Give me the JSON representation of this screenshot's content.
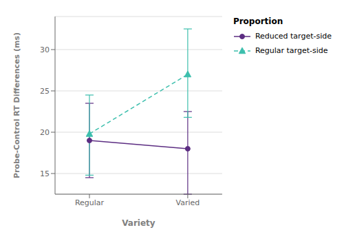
{
  "chart_data": {
    "type": "line",
    "xlabel": "Variety",
    "ylabel": "Probe-Control RT Differences (ms)",
    "legend_title": "Proportion",
    "categories": [
      "Regular",
      "Varied"
    ],
    "series": [
      {
        "name": "Reduced target-side",
        "color": "#5c2d82",
        "values": [
          19.0,
          18.0
        ],
        "ci_low": [
          14.5,
          12.5
        ],
        "ci_high": [
          23.5,
          22.5
        ],
        "marker": "circle",
        "line_style": "solid"
      },
      {
        "name": "Regular target-side",
        "color": "#3dbfad",
        "values": [
          19.8,
          27.0
        ],
        "ci_low": [
          14.8,
          21.8
        ],
        "ci_high": [
          24.5,
          32.5
        ],
        "marker": "triangle",
        "line_style": "dashed"
      }
    ],
    "ylim": [
      12.5,
      34
    ],
    "yticks": [
      15,
      20,
      25,
      30
    ],
    "grid": "y",
    "legend": "right"
  }
}
